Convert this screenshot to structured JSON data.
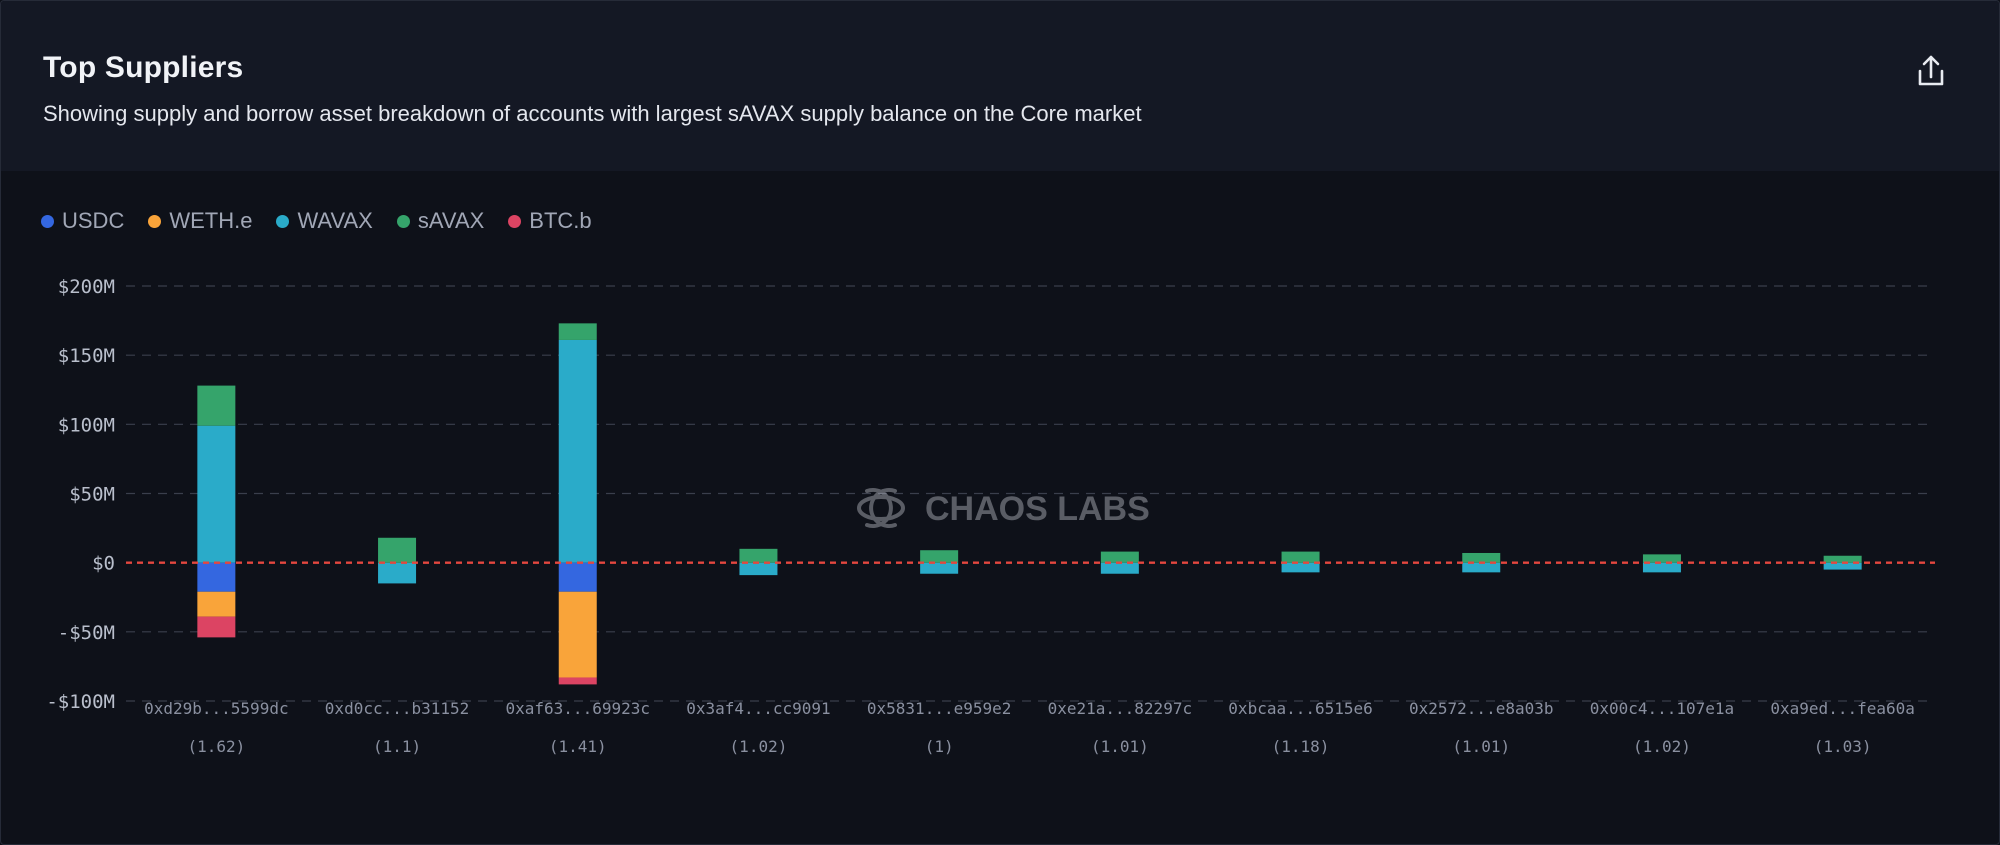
{
  "header": {
    "title": "Top Suppliers",
    "subtitle": "Showing supply and borrow asset breakdown of accounts with largest sAVAX supply balance on the Core market"
  },
  "watermark": {
    "text": "CHAOS LABS"
  },
  "colors": {
    "USDC": "#3467e0",
    "WETH.e": "#f9a43a",
    "WAVAX": "#2aabc9",
    "sAVAX": "#35a46b",
    "BTC.b": "#dc4463",
    "zero_line": "#e4473f",
    "grid": "#3a3f4c",
    "axis_text": "#b9bfcc",
    "category_text": "#8a90a0"
  },
  "chart_data": {
    "type": "bar",
    "stacked": true,
    "ylim": [
      -100,
      200
    ],
    "y_ticks": [
      {
        "value": 200,
        "label": "$200M"
      },
      {
        "value": 150,
        "label": "$150M"
      },
      {
        "value": 100,
        "label": "$100M"
      },
      {
        "value": 50,
        "label": "$50M"
      },
      {
        "value": 0,
        "label": "$0"
      },
      {
        "value": -50,
        "label": "-$50M"
      },
      {
        "value": -100,
        "label": "-$100M"
      }
    ],
    "grid": true,
    "legend_position": "top-left",
    "categories": [
      "0xd29b...5599dc",
      "0xd0cc...b31152",
      "0xaf63...69923c",
      "0x3af4...cc9091",
      "0x5831...e959e2",
      "0xe21a...82297c",
      "0xbcaa...6515e6",
      "0x2572...e8a03b",
      "0x00c4...107e1a",
      "0xa9ed...fea60a"
    ],
    "sublabels": [
      "(1.62)",
      "(1.1)",
      "(1.41)",
      "(1.02)",
      "(1)",
      "(1.01)",
      "(1.18)",
      "(1.01)",
      "(1.02)",
      "(1.03)"
    ],
    "series": [
      {
        "name": "USDC",
        "values": [
          -21,
          0,
          -21,
          0,
          0,
          0,
          0,
          0,
          0,
          0
        ]
      },
      {
        "name": "WETH.e",
        "values": [
          -18,
          0,
          -62,
          0,
          0,
          0,
          0,
          0,
          0,
          0
        ]
      },
      {
        "name": "WAVAX",
        "values": [
          99,
          -15,
          161,
          -9,
          -8,
          -8,
          -7,
          -7,
          -7,
          -5
        ]
      },
      {
        "name": "sAVAX",
        "values": [
          29,
          18,
          12,
          10,
          9,
          8,
          8,
          7,
          6,
          5
        ]
      },
      {
        "name": "BTC.b",
        "values": [
          -15,
          0,
          -5,
          0,
          0,
          0,
          0,
          0,
          0,
          0
        ]
      }
    ]
  }
}
